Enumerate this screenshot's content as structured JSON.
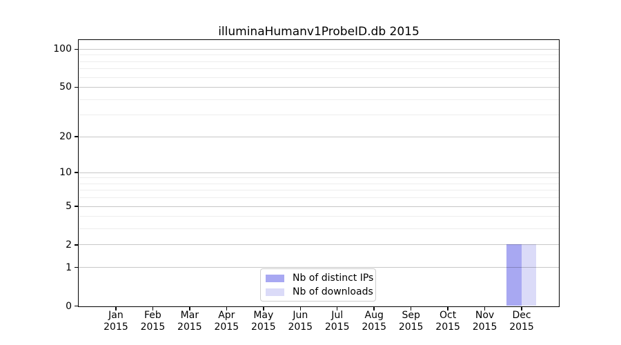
{
  "figure": {
    "title": "illuminaHumanv1ProbeID.db 2015"
  },
  "chart_data": {
    "type": "bar",
    "title": "illuminaHumanv1ProbeID.db 2015",
    "categories": [
      "Jan",
      "Feb",
      "Mar",
      "Apr",
      "May",
      "Jun",
      "Jul",
      "Aug",
      "Sep",
      "Oct",
      "Nov",
      "Dec"
    ],
    "year_label": "2015",
    "series": [
      {
        "name": "Nb of distinct IPs",
        "color": "#a8a8f2",
        "values": [
          0,
          0,
          0,
          0,
          0,
          0,
          0,
          0,
          0,
          0,
          0,
          2
        ]
      },
      {
        "name": "Nb of downloads",
        "color": "#dbdbf8",
        "values": [
          0,
          0,
          0,
          0,
          0,
          0,
          0,
          0,
          0,
          0,
          0,
          2
        ]
      }
    ],
    "xlabel": "",
    "ylabel": "",
    "yscale": "log1p",
    "ylim": [
      0,
      117.5
    ],
    "yticks": [
      0,
      1,
      2,
      5,
      10,
      20,
      50,
      100
    ],
    "yticks_minor": [
      3,
      4,
      6,
      7,
      8,
      9,
      30,
      40,
      60,
      70,
      80,
      90
    ],
    "grid": "horizontal",
    "legend_position": "lower center inside"
  }
}
